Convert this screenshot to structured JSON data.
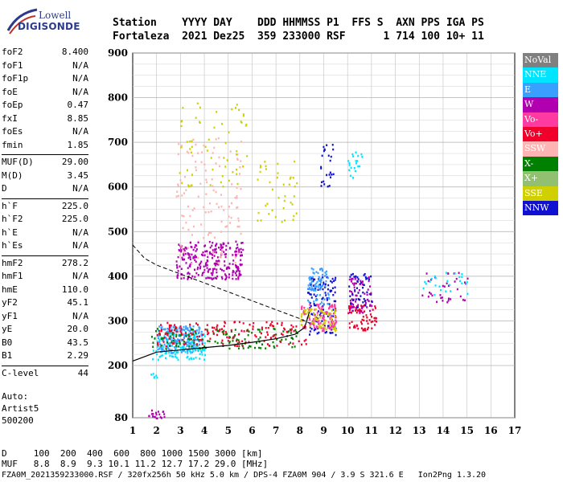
{
  "logo": {
    "line1": "Lowell",
    "line2": "DIGISONDE"
  },
  "header": {
    "line1": "Station    YYYY DAY    DDD HHMMSS P1  FFS S  AXN PPS IGA PS",
    "line2": "Fortaleza  2021 Dez25  359 233000 RSF      1 714 100 10+ 11"
  },
  "params": [
    {
      "k": "foF2",
      "v": "8.400"
    },
    {
      "k": "foF1",
      "v": "N/A"
    },
    {
      "k": "foF1p",
      "v": "N/A"
    },
    {
      "k": "foE",
      "v": "N/A"
    },
    {
      "k": "foEp",
      "v": "0.47"
    },
    {
      "k": "fxI",
      "v": "8.85"
    },
    {
      "k": "foEs",
      "v": "N/A"
    },
    {
      "k": "fmin",
      "v": "1.85"
    },
    {
      "k": "MUF(D)",
      "v": "29.00"
    },
    {
      "k": "M(D)",
      "v": "3.45"
    },
    {
      "k": "D",
      "v": "N/A"
    },
    {
      "k": "h`F",
      "v": "225.0"
    },
    {
      "k": "h`F2",
      "v": "225.0"
    },
    {
      "k": "h`E",
      "v": "N/A"
    },
    {
      "k": "h`Es",
      "v": "N/A"
    },
    {
      "k": "hmF2",
      "v": "278.2"
    },
    {
      "k": "hmF1",
      "v": "N/A"
    },
    {
      "k": "hmE",
      "v": "110.0"
    },
    {
      "k": "yF2",
      "v": "45.1"
    },
    {
      "k": "yF1",
      "v": "N/A"
    },
    {
      "k": "yE",
      "v": "20.0"
    },
    {
      "k": "B0",
      "v": "43.5"
    },
    {
      "k": "B1",
      "v": "2.29"
    },
    {
      "k": "C-level",
      "v": "44"
    }
  ],
  "auto": {
    "l1": "Auto:",
    "l2": "Artist5",
    "l3": "500200"
  },
  "legend": [
    {
      "label": "NoVal",
      "color": "#808080"
    },
    {
      "label": "NNE",
      "color": "#00e5ff"
    },
    {
      "label": "E",
      "color": "#3aa0ff"
    },
    {
      "label": "W",
      "color": "#b000b0"
    },
    {
      "label": "Vo-",
      "color": "#ff3aa0"
    },
    {
      "label": "Vo+",
      "color": "#f0002a"
    },
    {
      "label": "SSW",
      "color": "#ffb4b4"
    },
    {
      "label": "X-",
      "color": "#008000"
    },
    {
      "label": "X+",
      "color": "#90c070"
    },
    {
      "label": "SSE",
      "color": "#d0d000"
    },
    {
      "label": "NNW",
      "color": "#1010d0"
    }
  ],
  "footer": {
    "line1": "D     100  200  400  600  800 1000 1500 3000 [km]",
    "line2": "MUF   8.8  8.9  9.3 10.1 11.2 12.7 17.2 29.0 [MHz]",
    "line3": "FZA0M_2021359233000.RSF / 320fx256h 50 kHz 5.0 km / DPS-4 FZA0M 904 / 3.9 S 321.6 E   Ion2Png 1.3.20"
  },
  "chart_data": {
    "type": "scatter",
    "x_ticks": [
      1,
      2,
      3,
      4,
      5,
      6,
      7,
      8,
      9,
      10,
      11,
      12,
      13,
      14,
      15,
      16,
      17
    ],
    "y_ticks": [
      80,
      200,
      300,
      400,
      500,
      600,
      700,
      800,
      900
    ],
    "xlim": [
      1,
      17
    ],
    "ylim": [
      80,
      900
    ],
    "grid": true,
    "profile_curve": {
      "x": [
        1.0,
        1.5,
        2.0,
        3.0,
        4.0,
        5.0,
        6.0,
        7.0,
        7.8,
        8.2,
        8.4
      ],
      "y": [
        210,
        220,
        230,
        235,
        240,
        245,
        252,
        260,
        270,
        285,
        320
      ]
    },
    "trace_curve": {
      "x": [
        1.0,
        1.5,
        2.0,
        3.0,
        4.0,
        5.0,
        6.0,
        7.0,
        8.0,
        8.4
      ],
      "y": [
        470,
        440,
        425,
        405,
        385,
        365,
        345,
        325,
        305,
        295
      ]
    },
    "clusters": [
      {
        "color": "#3aa0ff",
        "x": [
          2.0,
          3.9
        ],
        "y": [
          230,
          290
        ],
        "n": 220
      },
      {
        "color": "#b000b0",
        "x": [
          2.8,
          5.6
        ],
        "y": [
          395,
          480
        ],
        "n": 260
      },
      {
        "color": "#ffb4b4",
        "x": [
          2.8,
          5.6
        ],
        "y": [
          430,
          720
        ],
        "n": 120
      },
      {
        "color": "#d0d000",
        "x": [
          2.9,
          5.8
        ],
        "y": [
          600,
          790
        ],
        "n": 60
      },
      {
        "color": "#00e5ff",
        "x": [
          1.8,
          4.0
        ],
        "y": [
          215,
          280
        ],
        "n": 120
      },
      {
        "color": "#008000",
        "x": [
          1.7,
          8.0
        ],
        "y": [
          240,
          285
        ],
        "n": 140
      },
      {
        "color": "#f0002a",
        "x": [
          2.0,
          8.3
        ],
        "y": [
          245,
          300
        ],
        "n": 160
      },
      {
        "color": "#1010d0",
        "x": [
          8.3,
          9.5
        ],
        "y": [
          270,
          400
        ],
        "n": 120
      },
      {
        "color": "#ff3aa0",
        "x": [
          8.0,
          9.5
        ],
        "y": [
          280,
          340
        ],
        "n": 110
      },
      {
        "color": "#d0d000",
        "x": [
          8.0,
          9.5
        ],
        "y": [
          280,
          330
        ],
        "n": 70
      },
      {
        "color": "#3aa0ff",
        "x": [
          8.3,
          9.2
        ],
        "y": [
          340,
          420
        ],
        "n": 80
      },
      {
        "color": "#f0002a",
        "x": [
          10.0,
          11.2
        ],
        "y": [
          280,
          340
        ],
        "n": 70
      },
      {
        "color": "#b000b0",
        "x": [
          10.0,
          11.0
        ],
        "y": [
          320,
          400
        ],
        "n": 70
      },
      {
        "color": "#1010d0",
        "x": [
          10.0,
          11.0
        ],
        "y": [
          330,
          410
        ],
        "n": 40
      },
      {
        "color": "#00e5ff",
        "x": [
          10.0,
          10.6
        ],
        "y": [
          620,
          680
        ],
        "n": 20
      },
      {
        "color": "#1010d0",
        "x": [
          8.8,
          9.4
        ],
        "y": [
          600,
          700
        ],
        "n": 25
      },
      {
        "color": "#b000b0",
        "x": [
          13.1,
          15.0
        ],
        "y": [
          340,
          410
        ],
        "n": 35
      },
      {
        "color": "#00e5ff",
        "x": [
          13.1,
          15.0
        ],
        "y": [
          360,
          410
        ],
        "n": 25
      },
      {
        "color": "#d0d000",
        "x": [
          6.1,
          7.9
        ],
        "y": [
          520,
          660
        ],
        "n": 40
      },
      {
        "color": "#b000b0",
        "x": [
          1.6,
          2.3
        ],
        "y": [
          80,
          100
        ],
        "n": 20
      },
      {
        "color": "#00e5ff",
        "x": [
          1.6,
          2.0
        ],
        "y": [
          170,
          185
        ],
        "n": 6
      }
    ]
  }
}
